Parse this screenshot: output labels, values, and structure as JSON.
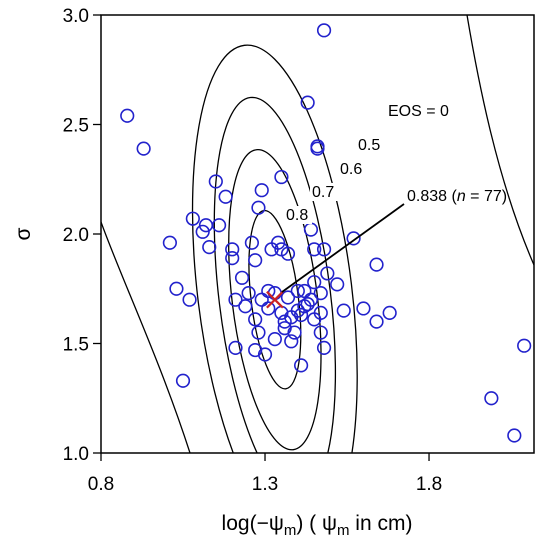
{
  "chart_data": {
    "type": "scatter",
    "title": "",
    "xlabel": {
      "prefix": "log(−ψ",
      "prefix_sub": "m",
      "middle": ") ( ψ",
      "middle_sub": "m",
      "suffix": " in cm)"
    },
    "ylabel": "σ",
    "xlim": [
      0.8,
      2.12
    ],
    "ylim": [
      1.0,
      3.0
    ],
    "xticks": [
      "0.8",
      "1.3",
      "1.8"
    ],
    "yticks": [
      "1.0",
      "1.5",
      "2.0",
      "2.5",
      "3.0"
    ],
    "grid": false,
    "series": [
      {
        "marker": "open-circle",
        "color": "#2222cc",
        "points": [
          [
            0.88,
            2.54
          ],
          [
            0.93,
            2.39
          ],
          [
            1.01,
            1.96
          ],
          [
            1.03,
            1.75
          ],
          [
            1.05,
            1.33
          ],
          [
            1.07,
            1.7
          ],
          [
            1.08,
            2.07
          ],
          [
            1.11,
            2.01
          ],
          [
            1.12,
            2.04
          ],
          [
            1.13,
            1.94
          ],
          [
            1.15,
            2.24
          ],
          [
            1.16,
            2.04
          ],
          [
            1.18,
            2.17
          ],
          [
            1.2,
            1.93
          ],
          [
            1.2,
            1.89
          ],
          [
            1.21,
            1.7
          ],
          [
            1.21,
            1.48
          ],
          [
            1.23,
            1.8
          ],
          [
            1.24,
            1.67
          ],
          [
            1.25,
            1.73
          ],
          [
            1.26,
            1.96
          ],
          [
            1.27,
            1.88
          ],
          [
            1.27,
            1.61
          ],
          [
            1.27,
            1.47
          ],
          [
            1.28,
            2.12
          ],
          [
            1.28,
            1.55
          ],
          [
            1.29,
            1.7
          ],
          [
            1.29,
            2.2
          ],
          [
            1.3,
            1.45
          ],
          [
            1.31,
            1.74
          ],
          [
            1.31,
            1.66
          ],
          [
            1.32,
            1.93
          ],
          [
            1.33,
            1.73
          ],
          [
            1.33,
            1.52
          ],
          [
            1.34,
            1.96
          ],
          [
            1.35,
            1.93
          ],
          [
            1.35,
            2.26
          ],
          [
            1.35,
            1.64
          ],
          [
            1.36,
            1.6
          ],
          [
            1.36,
            1.57
          ],
          [
            1.37,
            1.91
          ],
          [
            1.37,
            1.71
          ],
          [
            1.38,
            1.62
          ],
          [
            1.38,
            1.51
          ],
          [
            1.39,
            1.55
          ],
          [
            1.4,
            1.65
          ],
          [
            1.4,
            1.74
          ],
          [
            1.41,
            1.63
          ],
          [
            1.41,
            1.4
          ],
          [
            1.42,
            1.74
          ],
          [
            1.42,
            1.67
          ],
          [
            1.43,
            1.68
          ],
          [
            1.43,
            2.6
          ],
          [
            1.44,
            2.02
          ],
          [
            1.44,
            1.7
          ],
          [
            1.45,
            1.61
          ],
          [
            1.45,
            1.78
          ],
          [
            1.45,
            1.93
          ],
          [
            1.46,
            2.4
          ],
          [
            1.46,
            2.39
          ],
          [
            1.47,
            1.64
          ],
          [
            1.47,
            1.55
          ],
          [
            1.47,
            1.73
          ],
          [
            1.48,
            2.93
          ],
          [
            1.48,
            1.93
          ],
          [
            1.48,
            1.48
          ],
          [
            1.49,
            1.82
          ],
          [
            1.52,
            1.77
          ],
          [
            1.54,
            1.65
          ],
          [
            1.57,
            1.98
          ],
          [
            1.6,
            1.66
          ],
          [
            1.64,
            1.86
          ],
          [
            1.64,
            1.6
          ],
          [
            1.68,
            1.64
          ],
          [
            1.99,
            1.25
          ],
          [
            2.06,
            1.08
          ],
          [
            2.09,
            1.49
          ]
        ]
      }
    ],
    "optimum": {
      "x": 1.33,
      "y": 1.7,
      "marker": "x",
      "color": "#cc2222"
    },
    "contours": [
      {
        "label": "0.5",
        "center": [
          1.33,
          1.73
        ],
        "rx": 0.235,
        "ry": 1.14,
        "tilt_deg": -7
      },
      {
        "label": "0.6",
        "center": [
          1.33,
          1.71
        ],
        "rx": 0.17,
        "ry": 0.92,
        "tilt_deg": -7
      },
      {
        "label": "0.7",
        "center": [
          1.33,
          1.7
        ],
        "rx": 0.13,
        "ry": 0.69,
        "tilt_deg": -7
      },
      {
        "label": "0.8",
        "center": [
          1.33,
          1.7
        ],
        "rx": 0.072,
        "ry": 0.41,
        "tilt_deg": -7
      }
    ],
    "annotations": {
      "eos": "EOS = 0",
      "best_prefix": "0.838 (",
      "best_n": "n",
      "best_suffix": " = 77)"
    }
  }
}
